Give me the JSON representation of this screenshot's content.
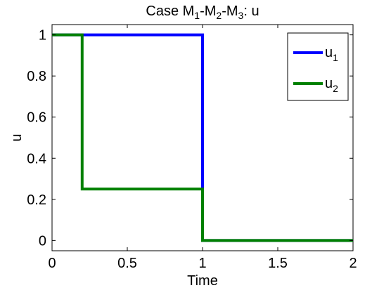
{
  "chart_data": {
    "type": "line",
    "title": "Case M1-M2-M3: u",
    "title_parts": [
      {
        "text": "Case M"
      },
      {
        "text": "1",
        "sub": true
      },
      {
        "text": "-M"
      },
      {
        "text": "2",
        "sub": true
      },
      {
        "text": "-M"
      },
      {
        "text": "3",
        "sub": true
      },
      {
        "text": ": u"
      }
    ],
    "xlabel": "Time",
    "ylabel": "u",
    "xlim": [
      0,
      2
    ],
    "ylim": [
      -0.05,
      1.05
    ],
    "xticks": [
      0,
      0.5,
      1,
      1.5,
      2
    ],
    "xtick_labels": [
      "0",
      "0.5",
      "1",
      "1.5",
      "2"
    ],
    "yticks": [
      0,
      0.2,
      0.4,
      0.6,
      0.8,
      1
    ],
    "ytick_labels": [
      "0",
      "0.2",
      "0.4",
      "0.6",
      "0.8",
      "1"
    ],
    "grid": false,
    "legend_position": "top-right",
    "series": [
      {
        "name": "u1",
        "label_main": "u",
        "label_sub": "1",
        "color": "#0000ff",
        "x": [
          0,
          1,
          1,
          2
        ],
        "y": [
          1,
          1,
          0,
          0
        ]
      },
      {
        "name": "u2",
        "label_main": "u",
        "label_sub": "2",
        "color": "#008000",
        "x": [
          0,
          0.2,
          0.2,
          1,
          1,
          2
        ],
        "y": [
          1,
          1,
          0.25,
          0.25,
          0,
          0
        ]
      }
    ]
  }
}
